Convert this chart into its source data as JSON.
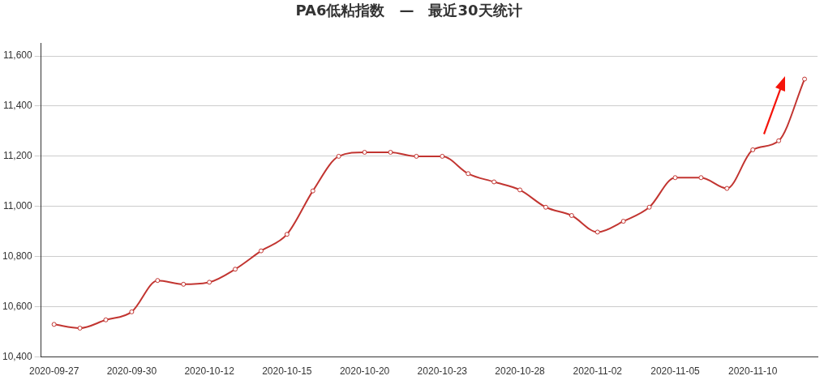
{
  "chart_data": {
    "type": "line",
    "title": "PA6低粘指数　—　最近30天统计",
    "categories": [
      "2020-09-27",
      null,
      null,
      "2020-09-30",
      null,
      null,
      "2020-10-12",
      null,
      null,
      "2020-10-15",
      null,
      null,
      "2020-10-20",
      null,
      null,
      "2020-10-23",
      null,
      null,
      "2020-10-28",
      null,
      null,
      "2020-11-02",
      null,
      null,
      "2020-11-05",
      null,
      null,
      "2020-11-10",
      null,
      null
    ],
    "series": [
      {
        "color": "#c23531",
        "values": [
          10530,
          10515,
          10548,
          10580,
          10705,
          10690,
          10698,
          10750,
          10823,
          10889,
          11062,
          11200,
          11216,
          11216,
          11200,
          11200,
          11131,
          11098,
          11066,
          10997,
          10964,
          10898,
          10941,
          10997,
          11115,
          11115,
          11072,
          11226,
          11262,
          11508
        ]
      }
    ],
    "ylim": [
      10400,
      11650
    ],
    "yticks": [
      {
        "value": 10400,
        "label": "10,400"
      },
      {
        "value": 10600,
        "label": "10,600"
      },
      {
        "value": 10800,
        "label": "10,800"
      },
      {
        "value": 11000,
        "label": "11,000"
      },
      {
        "value": 11200,
        "label": "11,200"
      },
      {
        "value": 11400,
        "label": "11,400"
      },
      {
        "value": 11600,
        "label": "11,600"
      }
    ],
    "grid": "y",
    "legend": false,
    "marker": "circle",
    "line_style": "solid"
  }
}
